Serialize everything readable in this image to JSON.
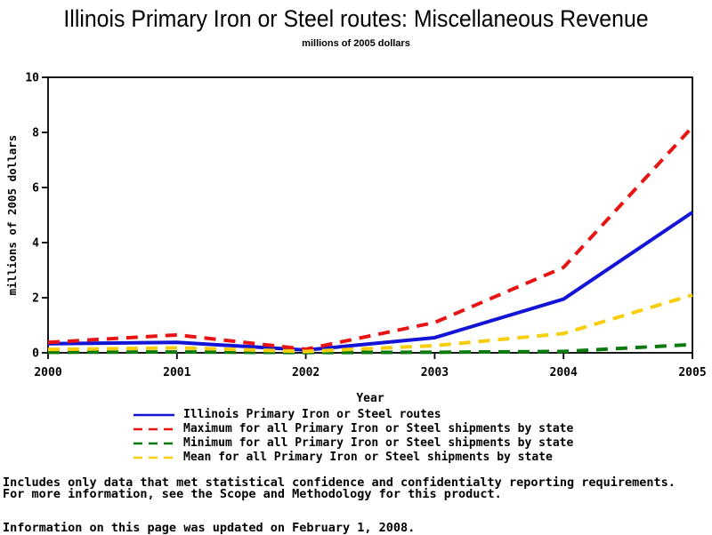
{
  "page": {
    "background": "#ffffff"
  },
  "chart_data": {
    "type": "line",
    "title": "Illinois Primary Iron or Steel routes: Miscellaneous Revenue",
    "subtitle": "millions of 2005 dollars",
    "xlabel": "Year",
    "ylabel": "millions of 2005 dollars",
    "x": [
      2000,
      2001,
      2002,
      2003,
      2004,
      2005
    ],
    "xlim": [
      2000,
      2005
    ],
    "ylim": [
      0,
      10
    ],
    "yticks": [
      0,
      2,
      4,
      6,
      8,
      10
    ],
    "grid": false,
    "frame": true,
    "legend_position": "bottom",
    "axis_color": "#000000",
    "series": [
      {
        "name": "Illinois Primary Iron or Steel routes",
        "color": "#1414d6",
        "style": "solid",
        "values": [
          0.33,
          0.38,
          0.1,
          0.55,
          1.95,
          5.1
        ]
      },
      {
        "name": "Maximum for all Primary Iron or Steel shipments by state",
        "color": "#e81414",
        "style": "dashed",
        "values": [
          0.38,
          0.65,
          0.13,
          1.1,
          3.1,
          8.2
        ]
      },
      {
        "name": "Minimum for all Primary Iron or Steel shipments by state",
        "color": "#0c7a0c",
        "style": "dashed",
        "values": [
          0.02,
          0.03,
          0.01,
          0.02,
          0.05,
          0.3
        ]
      },
      {
        "name": "Mean for all Primary Iron or Steel shipments by state",
        "color": "#f8cd0c",
        "style": "dashed",
        "values": [
          0.12,
          0.18,
          0.05,
          0.26,
          0.7,
          2.1
        ]
      }
    ]
  },
  "footnotes": {
    "line1": "Includes only data that met statistical confidence and confidentialty reporting requirements.",
    "line2": "For more information, see the Scope and Methodology for this product.",
    "line3": "Information on this page was updated on February 1, 2008."
  }
}
